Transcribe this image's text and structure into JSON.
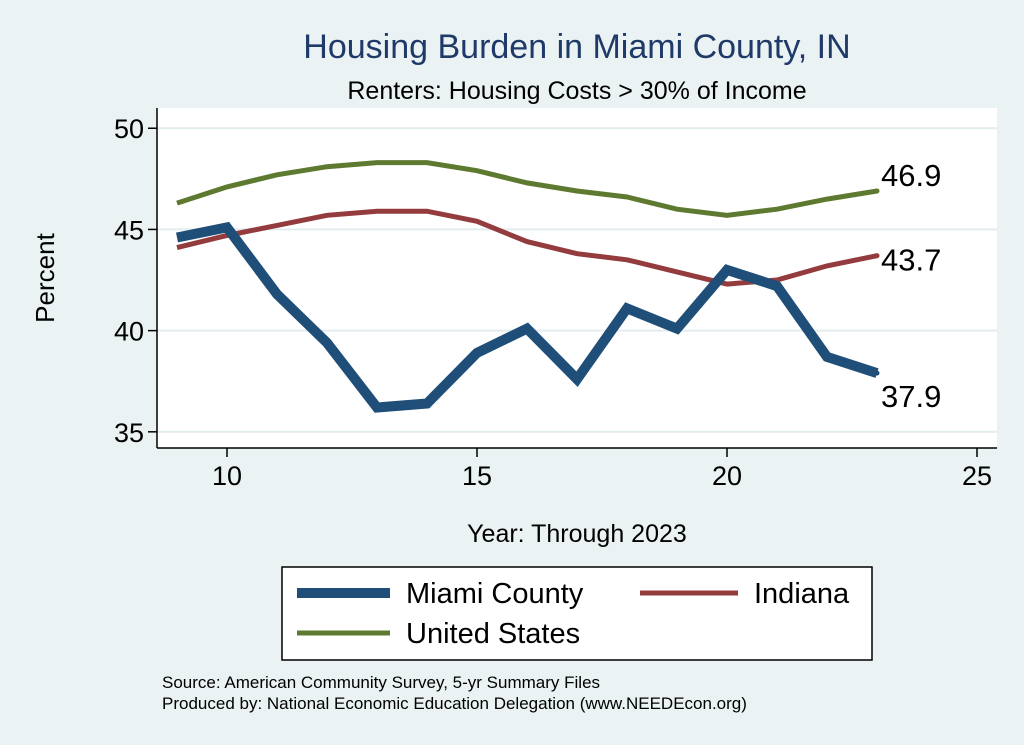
{
  "chart_data": {
    "type": "line",
    "title": "Housing Burden in Miami County, IN",
    "subtitle": "Renters: Housing Costs > 30% of Income",
    "xlabel": "Year: Through 2023",
    "ylabel": "Percent",
    "xlim": [
      8.6,
      25.4
    ],
    "ylim": [
      34.2,
      51
    ],
    "x_ticks": [
      10,
      15,
      20,
      25
    ],
    "y_ticks": [
      35,
      40,
      45,
      50
    ],
    "grid": true,
    "legend_position": "bottom",
    "x": [
      9,
      10,
      11,
      12,
      13,
      14,
      15,
      16,
      17,
      18,
      19,
      20,
      21,
      22,
      23
    ],
    "series": [
      {
        "name": "Miami County",
        "color": "#1f4e79",
        "values": [
          44.6,
          45.1,
          41.8,
          39.4,
          36.2,
          36.4,
          38.9,
          40.1,
          37.6,
          41.1,
          40.1,
          43.0,
          42.2,
          38.7,
          37.9
        ],
        "end_label": "37.9"
      },
      {
        "name": "Indiana",
        "color": "#943b3e",
        "values": [
          44.1,
          44.7,
          45.2,
          45.7,
          45.9,
          45.9,
          45.4,
          44.4,
          43.8,
          43.5,
          42.9,
          42.3,
          42.5,
          43.2,
          43.7
        ],
        "end_label": "43.7"
      },
      {
        "name": "United States",
        "color": "#5e7a30",
        "values": [
          46.3,
          47.1,
          47.7,
          48.1,
          48.3,
          48.3,
          47.9,
          47.3,
          46.9,
          46.6,
          46.0,
          45.7,
          46.0,
          46.5,
          46.9
        ],
        "end_label": "46.9"
      }
    ],
    "source_lines": [
      "Source: American Community Survey, 5-yr Summary Files",
      "Produced by: National Economic Education Delegation (www.NEEDEcon.org)"
    ]
  }
}
